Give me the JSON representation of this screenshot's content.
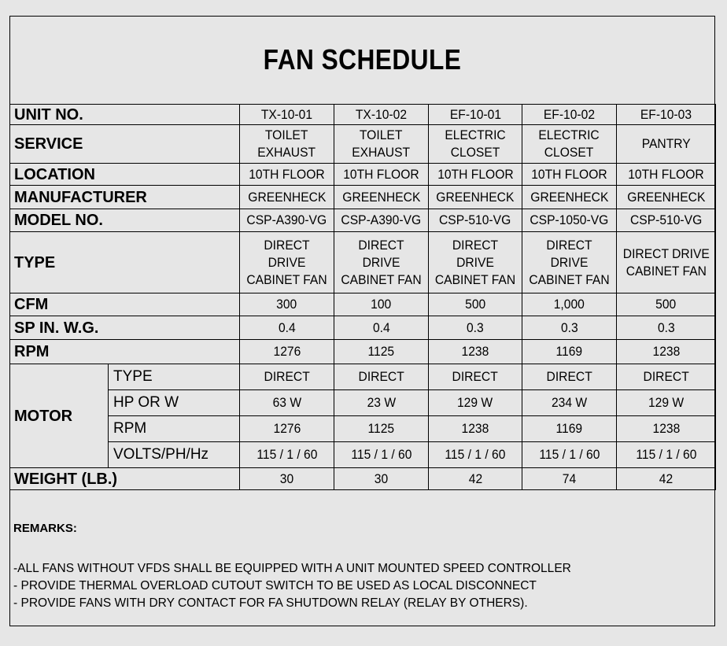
{
  "title": "FAN SCHEDULE",
  "labels": {
    "unit": "UNIT NO.",
    "service": "SERVICE",
    "location": "LOCATION",
    "manufacturer": "MANUFACTURER",
    "model": "MODEL NO.",
    "type": "TYPE",
    "cfm": "CFM",
    "sp": "SP IN. W.G.",
    "rpm": "RPM",
    "motor": "MOTOR",
    "motor_type": "TYPE",
    "motor_hp": "HP OR W",
    "motor_rpm": "RPM",
    "motor_volts": "VOLTS/PH/Hz",
    "weight": "WEIGHT (LB.)"
  },
  "units": [
    {
      "unit": "TX-10-01",
      "service": "TOILET\nEXHAUST",
      "location": "10TH FLOOR",
      "manufacturer": "GREENHECK",
      "model": "CSP-A390-VG",
      "type": "DIRECT DRIVE\nCABINET FAN",
      "cfm": "300",
      "sp": "0.4",
      "rpm": "1276",
      "motor_type": "DIRECT",
      "motor_hp": "63 W",
      "motor_rpm": "1276",
      "motor_volts": "115 / 1 / 60",
      "weight": "30"
    },
    {
      "unit": "TX-10-02",
      "service": "TOILET\nEXHAUST",
      "location": "10TH FLOOR",
      "manufacturer": "GREENHECK",
      "model": "CSP-A390-VG",
      "type": "DIRECT DRIVE\nCABINET FAN",
      "cfm": "100",
      "sp": "0.4",
      "rpm": "1125",
      "motor_type": "DIRECT",
      "motor_hp": "23 W",
      "motor_rpm": "1125",
      "motor_volts": "115 / 1 / 60",
      "weight": "30"
    },
    {
      "unit": "EF-10-01",
      "service": "ELECTRIC\nCLOSET",
      "location": "10TH FLOOR",
      "manufacturer": "GREENHECK",
      "model": "CSP-510-VG",
      "type": "DIRECT DRIVE\nCABINET FAN",
      "cfm": "500",
      "sp": "0.3",
      "rpm": "1238",
      "motor_type": "DIRECT",
      "motor_hp": "129 W",
      "motor_rpm": "1238",
      "motor_volts": "115 / 1 / 60",
      "weight": "42"
    },
    {
      "unit": "EF-10-02",
      "service": "ELECTRIC\nCLOSET",
      "location": "10TH FLOOR",
      "manufacturer": "GREENHECK",
      "model": "CSP-1050-VG",
      "type": "DIRECT DRIVE\nCABINET FAN",
      "cfm": "1,000",
      "sp": "0.3",
      "rpm": "1169",
      "motor_type": "DIRECT",
      "motor_hp": "234 W",
      "motor_rpm": "1169",
      "motor_volts": "115 / 1 / 60",
      "weight": "74"
    },
    {
      "unit": "EF-10-03",
      "service": "PANTRY",
      "location": "10TH FLOOR",
      "manufacturer": "GREENHECK",
      "model": "CSP-510-VG",
      "type": "DIRECT DRIVE\nCABINET FAN",
      "cfm": "500",
      "sp": "0.3",
      "rpm": "1238",
      "motor_type": "DIRECT",
      "motor_hp": "129 W",
      "motor_rpm": "1238",
      "motor_volts": "115 / 1 / 60",
      "weight": "42"
    }
  ],
  "remarks": {
    "title": "REMARKS:",
    "lines": [
      "-ALL FANS WITHOUT VFDS SHALL BE EQUIPPED WITH A UNIT MOUNTED SPEED CONTROLLER",
      "- PROVIDE THERMAL OVERLOAD CUTOUT SWITCH TO BE USED AS LOCAL DISCONNECT",
      "- PROVIDE FANS WITH DRY CONTACT FOR FA SHUTDOWN RELAY (RELAY BY OTHERS)."
    ]
  }
}
